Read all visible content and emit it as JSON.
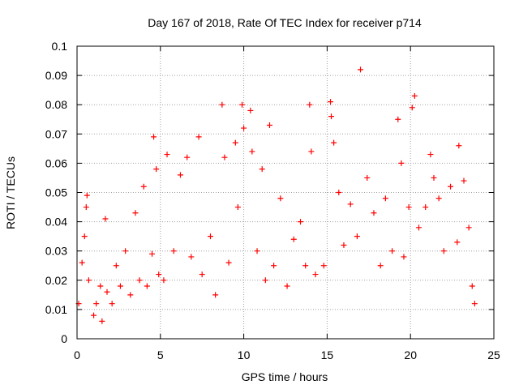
{
  "chart_data": {
    "type": "scatter",
    "title": "Day 167 of 2018, Rate Of TEC Index for receiver p714",
    "xlabel": "GPS time / hours",
    "ylabel": "ROTI / TECUs",
    "xlim": [
      0,
      25
    ],
    "ylim": [
      0,
      0.1
    ],
    "xticks": [
      0,
      5,
      10,
      15,
      20,
      25
    ],
    "xtick_labels": [
      "0",
      "5",
      "10",
      "15",
      "20",
      "25"
    ],
    "yticks": [
      0,
      0.01,
      0.02,
      0.03,
      0.04,
      0.05,
      0.06,
      0.07,
      0.08,
      0.09,
      0.1
    ],
    "ytick_labels": [
      "0",
      "0.01",
      "0.02",
      "0.03",
      "0.04",
      "0.05",
      "0.06",
      "0.07",
      "0.08",
      "0.09",
      "0.1"
    ],
    "grid": true,
    "marker": "+",
    "colors": {
      "series": "#ff0000",
      "grid": "#a0a0a0",
      "axis": "#000000"
    },
    "series": [
      {
        "x": [
          0.1,
          0.3,
          0.45,
          0.55,
          0.6,
          0.7,
          1.0,
          1.15,
          1.4,
          1.5,
          1.7,
          1.8,
          2.1,
          2.35,
          2.6,
          2.9,
          3.2,
          3.5,
          3.75,
          4.0,
          4.2,
          4.5,
          4.6,
          4.75,
          4.9,
          5.2,
          5.4,
          5.8,
          6.2,
          6.6,
          6.85,
          7.3,
          7.5,
          8.0,
          8.3,
          8.7,
          8.85,
          9.1,
          9.5,
          9.65,
          9.9,
          10.0,
          10.4,
          10.5,
          10.8,
          11.1,
          11.3,
          11.55,
          11.8,
          12.2,
          12.6,
          13.0,
          13.4,
          13.7,
          13.95,
          14.05,
          14.3,
          14.8,
          15.2,
          15.25,
          15.4,
          15.7,
          16.0,
          16.4,
          16.8,
          17.0,
          17.4,
          17.8,
          18.2,
          18.5,
          18.9,
          19.25,
          19.45,
          19.6,
          19.9,
          20.1,
          20.25,
          20.5,
          20.9,
          21.2,
          21.4,
          21.7,
          22.0,
          22.4,
          22.8,
          22.9,
          23.2,
          23.5,
          23.7,
          23.85
        ],
        "y": [
          0.012,
          0.026,
          0.035,
          0.045,
          0.049,
          0.02,
          0.008,
          0.012,
          0.018,
          0.006,
          0.041,
          0.016,
          0.012,
          0.025,
          0.018,
          0.03,
          0.015,
          0.043,
          0.02,
          0.052,
          0.018,
          0.029,
          0.069,
          0.058,
          0.022,
          0.02,
          0.063,
          0.03,
          0.056,
          0.062,
          0.028,
          0.069,
          0.022,
          0.035,
          0.015,
          0.08,
          0.062,
          0.026,
          0.067,
          0.045,
          0.08,
          0.072,
          0.078,
          0.064,
          0.03,
          0.058,
          0.02,
          0.073,
          0.025,
          0.048,
          0.018,
          0.034,
          0.04,
          0.025,
          0.08,
          0.064,
          0.022,
          0.025,
          0.081,
          0.076,
          0.067,
          0.05,
          0.032,
          0.046,
          0.035,
          0.092,
          0.055,
          0.043,
          0.025,
          0.048,
          0.03,
          0.075,
          0.06,
          0.028,
          0.045,
          0.079,
          0.083,
          0.038,
          0.045,
          0.063,
          0.055,
          0.048,
          0.03,
          0.052,
          0.033,
          0.066,
          0.054,
          0.038,
          0.018,
          0.012
        ]
      }
    ]
  }
}
